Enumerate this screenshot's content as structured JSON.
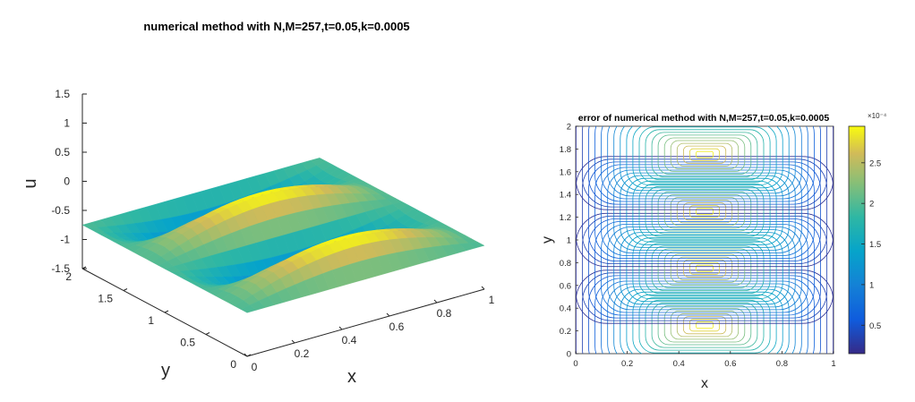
{
  "chart_data": [
    {
      "type": "surface",
      "title": "numerical method with N,M=257,t=0.05,k=0.0005",
      "xlabel": "x",
      "ylabel": "y",
      "zlabel": "u",
      "xlim": [
        0,
        1
      ],
      "ylim": [
        0,
        2
      ],
      "zlim": [
        -1.5,
        1.5
      ],
      "xticks": [
        "0",
        "0.2",
        "0.4",
        "0.6",
        "0.8",
        "1"
      ],
      "yticks": [
        "0",
        "0.5",
        "1",
        "1.5",
        "2"
      ],
      "zticks": [
        "-1.5",
        "-1",
        "-0.5",
        "0",
        "0.5",
        "1",
        "1.5"
      ],
      "z_peak": 1.05,
      "colormap": "parula"
    },
    {
      "type": "contour",
      "title": "error of numerical method with N,M=257,t=0.05,k=0.0005",
      "xlabel": "x",
      "ylabel": "y",
      "xlim": [
        0,
        1
      ],
      "ylim": [
        0,
        2
      ],
      "xticks": [
        "0",
        "0.2",
        "0.4",
        "0.6",
        "0.8",
        "1"
      ],
      "yticks": [
        "0",
        "0.2",
        "0.4",
        "0.6",
        "0.8",
        "1",
        "1.2",
        "1.4",
        "1.6",
        "1.8",
        "2"
      ],
      "lobe_centers": [
        [
          0.5,
          0.25
        ],
        [
          0.5,
          0.75
        ],
        [
          0.5,
          1.25
        ],
        [
          0.5,
          1.75
        ]
      ],
      "levels": 20,
      "max_value": 0.00029,
      "colorbar": {
        "exponent": "×10⁻⁴",
        "ticks": [
          "0.5",
          "1",
          "1.5",
          "2",
          "2.5"
        ],
        "tick_values": [
          0.5,
          1.0,
          1.5,
          2.0,
          2.5
        ],
        "range": [
          0.15,
          2.95
        ]
      },
      "colormap": "parula"
    }
  ]
}
